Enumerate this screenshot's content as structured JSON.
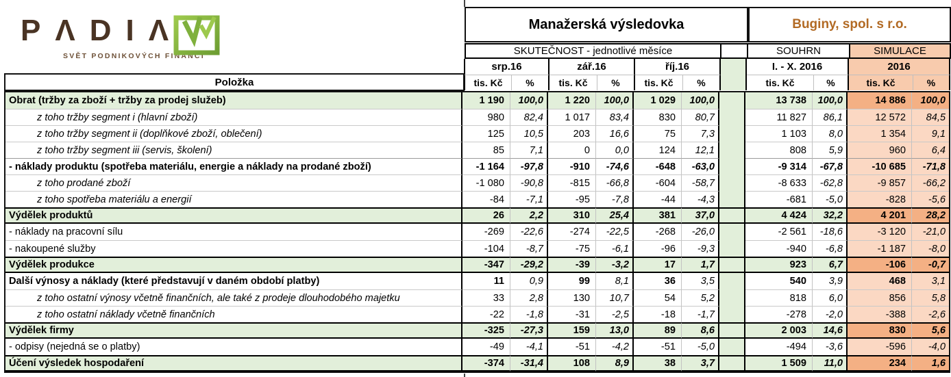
{
  "logo": {
    "brand_display": "PΛDIΛ",
    "tagline": "SVĚT PODNIKOVÝCH FINANCÍ"
  },
  "header": {
    "report_title": "Manažerská výsledovka",
    "company_name": "Buginy, spol. s r.o.",
    "actuals_section": "SKUTEČNOST - jednotlivé měsíce",
    "summary_section": "SOUHRN",
    "simulation_section": "SIMULACE",
    "months": [
      "srp.16",
      "zář.16",
      "říj.16"
    ],
    "summary_period": "I. -  X. 2016",
    "simulation_period": "2016",
    "unit": "tis. Kč",
    "percent": "%"
  },
  "table": {
    "item_column_header": "Položka",
    "rows": [
      {
        "label": "Obrat (tržby za zboží + tržby za prodej služeb)",
        "style": "summary",
        "values": [
          "1 190",
          "100,0",
          "1 220",
          "100,0",
          "1 029",
          "100,0",
          "13 738",
          "100,0",
          "14 886",
          "100,0"
        ]
      },
      {
        "label": "z toho tržby segment i (hlavní zboží)",
        "style": "sub",
        "values": [
          "980",
          "82,4",
          "1 017",
          "83,4",
          "830",
          "80,7",
          "11 827",
          "86,1",
          "12 572",
          "84,5"
        ]
      },
      {
        "label": "z toho tržby segment ii (doplňkové zboží, oblečení)",
        "style": "sub",
        "values": [
          "125",
          "10,5",
          "203",
          "16,6",
          "75",
          "7,3",
          "1 103",
          "8,0",
          "1 354",
          "9,1"
        ]
      },
      {
        "label": "z toho tržby segment iii (servis, školení)",
        "style": "sub",
        "values": [
          "85",
          "7,1",
          "0",
          "0,0",
          "124",
          "12,1",
          "808",
          "5,9",
          "960",
          "6,4"
        ]
      },
      {
        "label": "- náklady produktu (spotřeba materiálu, energie a náklady na prodané zboží)",
        "style": "bold",
        "values": [
          "-1 164",
          "-97,8",
          "-910",
          "-74,6",
          "-648",
          "-63,0",
          "-9 314",
          "-67,8",
          "-10 685",
          "-71,8"
        ]
      },
      {
        "label": "z toho prodané zboží",
        "style": "sub",
        "values": [
          "-1 080",
          "-90,8",
          "-815",
          "-66,8",
          "-604",
          "-58,7",
          "-8 633",
          "-62,8",
          "-9 857",
          "-66,2"
        ]
      },
      {
        "label": "z toho spotřeba materiálu a energií",
        "style": "sub",
        "values": [
          "-84",
          "-7,1",
          "-95",
          "-7,8",
          "-44",
          "-4,3",
          "-681",
          "-5,0",
          "-828",
          "-5,6"
        ]
      },
      {
        "label": "Výdělek produktů",
        "style": "summary",
        "values": [
          "26",
          "2,2",
          "310",
          "25,4",
          "381",
          "37,0",
          "4 424",
          "32,2",
          "4 201",
          "28,2"
        ]
      },
      {
        "label": "- náklady na pracovní sílu",
        "style": "plain",
        "values": [
          "-269",
          "-22,6",
          "-274",
          "-22,5",
          "-268",
          "-26,0",
          "-2 561",
          "-18,6",
          "-3 120",
          "-21,0"
        ]
      },
      {
        "label": "- nakoupené služby",
        "style": "plain",
        "values": [
          "-104",
          "-8,7",
          "-75",
          "-6,1",
          "-96",
          "-9,3",
          "-940",
          "-6,8",
          "-1 187",
          "-8,0"
        ]
      },
      {
        "label": "Výdělek produkce",
        "style": "summary",
        "values": [
          "-347",
          "-29,2",
          "-39",
          "-3,2",
          "17",
          "1,7",
          "923",
          "6,7",
          "-106",
          "-0,7"
        ]
      },
      {
        "label": "Další výnosy a náklady (které představují v daném období platby)",
        "style": "bold2",
        "values": [
          "11",
          "0,9",
          "99",
          "8,1",
          "36",
          "3,5",
          "540",
          "3,9",
          "468",
          "3,1"
        ]
      },
      {
        "label": "z toho ostatní výnosy včetně finančních, ale také z prodeje dlouhodobého majetku",
        "style": "sub",
        "values": [
          "33",
          "2,8",
          "130",
          "10,7",
          "54",
          "5,2",
          "818",
          "6,0",
          "856",
          "5,8"
        ]
      },
      {
        "label": "z toho ostatní náklady včetně finančních",
        "style": "sub",
        "values": [
          "-22",
          "-1,8",
          "-31",
          "-2,5",
          "-18",
          "-1,7",
          "-278",
          "-2,0",
          "-388",
          "-2,6"
        ]
      },
      {
        "label": "Výdělek firmy",
        "style": "summary",
        "values": [
          "-325",
          "-27,3",
          "159",
          "13,0",
          "89",
          "8,6",
          "2 003",
          "14,6",
          "830",
          "5,6"
        ]
      },
      {
        "label": "- odpisy (nejedná se o platby)",
        "style": "plain",
        "values": [
          "-49",
          "-4,1",
          "-51",
          "-4,2",
          "-51",
          "-5,0",
          "-494",
          "-3,6",
          "-596",
          "-4,0"
        ]
      },
      {
        "label": "Účení výsledek hospodaření",
        "style": "summary",
        "values": [
          "-374",
          "-31,4",
          "108",
          "8,9",
          "38",
          "3,7",
          "1 509",
          "11,0",
          "234",
          "1,6"
        ]
      }
    ]
  },
  "colors": {
    "green_fill": "#E2EFDA",
    "sim_header_fill": "#F8CBAD",
    "sim_row_fill": "#FBD8C3",
    "sim_summary_fill": "#F4B084",
    "company_text": "#B26A24",
    "brand_text": "#4A3424",
    "logo_green_dark": "#79A93A",
    "logo_green_light": "#9DC94D"
  }
}
